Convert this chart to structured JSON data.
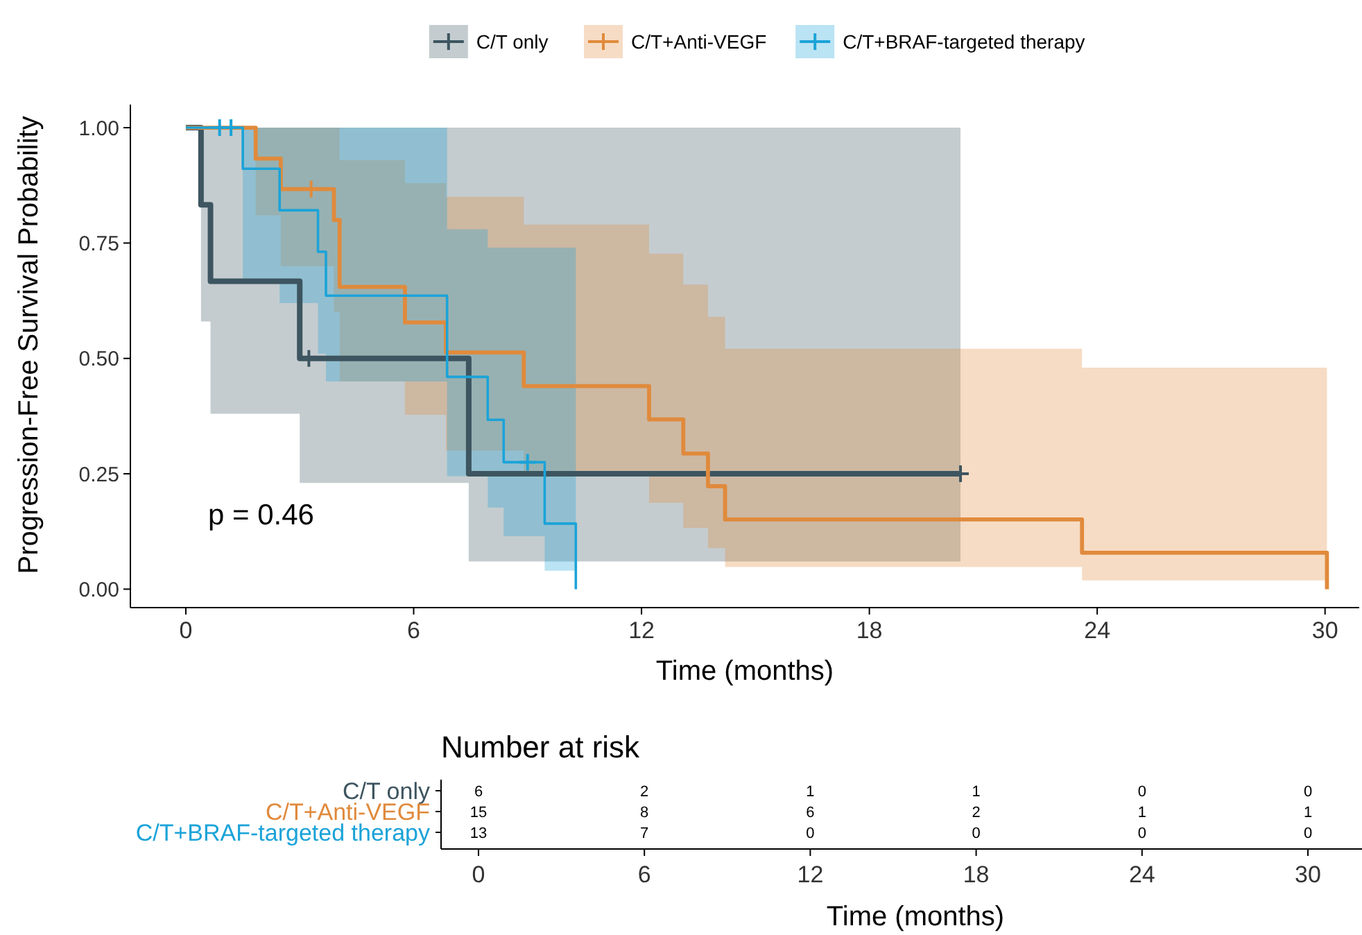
{
  "chart_data": [
    {
      "type": "step",
      "ylabel": "Progression-Free Survival Probability",
      "xlabel": "Time (months)",
      "legend": "top",
      "marker": "none",
      "line_style": "solid",
      "grid": false,
      "xlim": [
        -1.46,
        30.9
      ],
      "ylim": [
        -0.04,
        1.05
      ],
      "xticks": [
        0,
        6,
        12,
        18,
        24,
        30
      ],
      "yticks": [
        {
          "value": 0,
          "label": "0.00"
        },
        {
          "value": 0.25,
          "label": "0.25"
        },
        {
          "value": 0.5,
          "label": "0.50"
        },
        {
          "value": 0.75,
          "label": "0.75"
        },
        {
          "value": 1,
          "label": "1.00"
        }
      ],
      "annotations": [
        "p = 0.46"
      ],
      "series": [
        {
          "name": "C/T only",
          "color": "#3d5560",
          "x": [
            0,
            0.4,
            0.65,
            3.0,
            7.45,
            20.4
          ],
          "values": [
            1,
            0.833,
            0.667,
            0.5,
            0.25,
            0.25
          ],
          "lower": [
            1,
            0.58,
            0.38,
            0.23,
            0.06,
            0.06
          ],
          "upper": [
            1,
            1,
            1,
            1,
            1,
            1
          ]
        },
        {
          "name": "C/T+Anti-VEGF",
          "color": "#e08a3c",
          "x": [
            0,
            1.84,
            2.5,
            3.9,
            4.05,
            5.77,
            6.85,
            8.9,
            12.2,
            13.1,
            13.75,
            14.2,
            23.6,
            30.05
          ],
          "values": [
            1,
            0.933,
            0.867,
            0.8,
            0.655,
            0.578,
            0.513,
            0.44,
            0.368,
            0.294,
            0.223,
            0.151,
            0.079,
            0
          ],
          "lower": [
            1,
            0.81,
            0.7,
            0.6,
            0.45,
            0.378,
            0.3,
            0.245,
            0.187,
            0.133,
            0.089,
            0.048,
            0.019,
            0.019
          ],
          "upper": [
            1,
            1,
            1,
            1,
            0.93,
            0.88,
            0.85,
            0.79,
            0.727,
            0.66,
            0.59,
            0.521,
            0.48,
            0.48
          ]
        },
        {
          "name": "C/T+BRAF-targeted therapy",
          "color": "#1ba3d8",
          "x": [
            0,
            1.5,
            2.47,
            3.48,
            3.69,
            6.88,
            7.95,
            8.37,
            9.45,
            10.27
          ],
          "values": [
            1,
            0.911,
            0.821,
            0.731,
            0.636,
            0.46,
            0.367,
            0.275,
            0.142,
            0
          ],
          "lower": [
            1,
            0.667,
            0.62,
            0.51,
            0.45,
            0.245,
            0.177,
            0.115,
            0.04,
            0.04
          ],
          "upper": [
            1,
            1,
            1,
            1,
            1,
            0.78,
            0.74,
            0.74,
            0.74,
            0.74
          ]
        },
        {
          "type": "scatter",
          "marker": "cross",
          "color": "#3d5560",
          "x": [
            3.24,
            20.4
          ],
          "values": [
            0.5,
            0.25
          ]
        },
        {
          "type": "scatter",
          "marker": "cross",
          "color": "#e08a3c",
          "x": [
            3.3
          ],
          "values": [
            0.867
          ]
        },
        {
          "type": "scatter",
          "marker": "cross",
          "color": "#1ba3d8",
          "x": [
            0.89,
            1.19,
            9.0
          ],
          "values": [
            1,
            1,
            0.275
          ]
        }
      ]
    },
    {
      "type": "heatmap",
      "title": "Number at risk",
      "xlabel": "Time (months)",
      "data_labels": true,
      "categories": [
        "0",
        "6",
        "12",
        "18",
        "24",
        "30"
      ],
      "y_categories": [
        "C/T only",
        "C/T+Anti-VEGF",
        "C/T+BRAF-targeted therapy"
      ],
      "colors": [
        "#3d5560",
        "#e08a3c",
        "#1ba3d8"
      ],
      "cells": [
        [
          6,
          2,
          1,
          1,
          0,
          0
        ],
        [
          15,
          8,
          6,
          2,
          1,
          1
        ],
        [
          13,
          7,
          0,
          0,
          0,
          0
        ]
      ]
    }
  ]
}
